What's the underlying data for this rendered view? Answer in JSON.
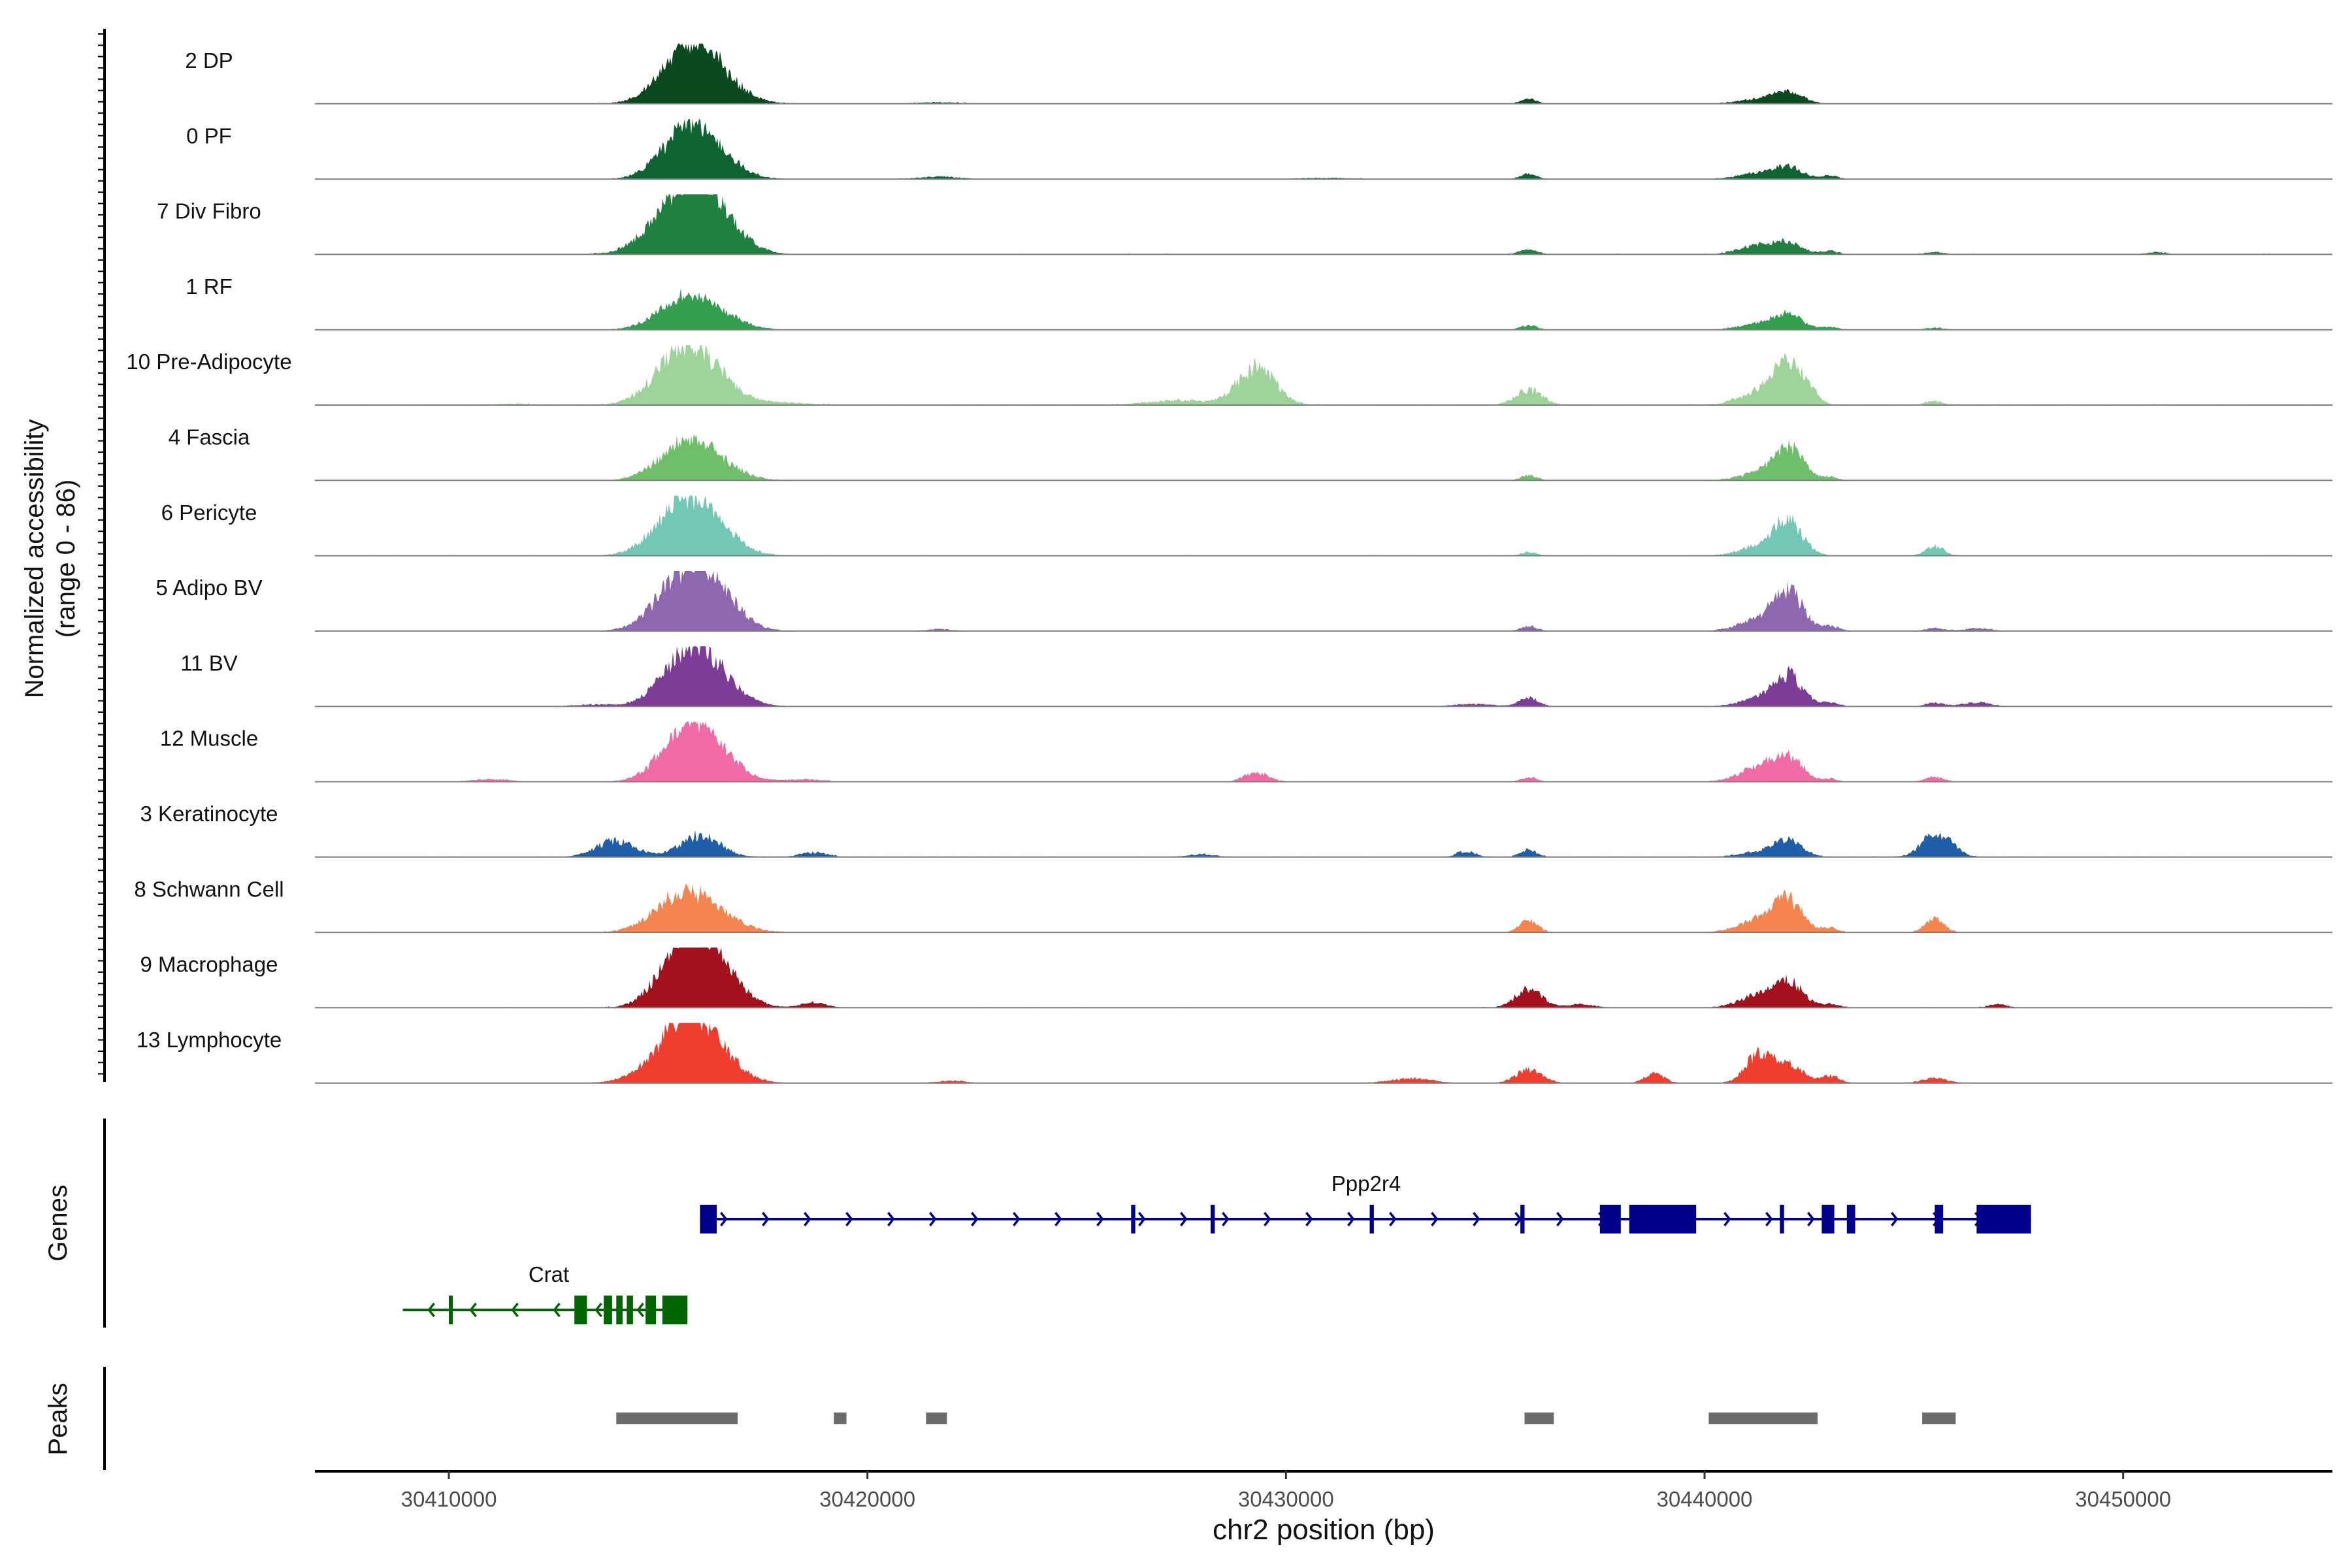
{
  "chart_data": {
    "type": "area",
    "title": "",
    "tracks": {
      "ylabel_line1": "Normalized accessibility",
      "ylabel_line2": "(range 0 - 86)",
      "ylim": [
        0,
        86
      ],
      "series": [
        {
          "name": "2 DP",
          "color": "#0b4a1f",
          "base": 0.6,
          "peaks": [
            [
              30415600,
              160,
              40
            ],
            [
              30416200,
              130,
              42
            ],
            [
              30435800,
              22,
              12
            ],
            [
              30441300,
              20,
              30
            ],
            [
              30442000,
              48,
              22
            ],
            [
              30421700,
              6,
              30
            ]
          ]
        },
        {
          "name": "0 PF",
          "color": "#0e6430",
          "base": 0.6,
          "peaks": [
            [
              30415600,
              150,
              38
            ],
            [
              30416200,
              110,
              40
            ],
            [
              30435800,
              22,
              12
            ],
            [
              30441300,
              25,
              30
            ],
            [
              30442000,
              48,
              22
            ],
            [
              30443000,
              15,
              12
            ],
            [
              30421700,
              10,
              30
            ],
            [
              30431000,
              5,
              40
            ]
          ]
        },
        {
          "name": "7 Div Fibro",
          "color": "#1f8040",
          "base": 0.9,
          "peaks": [
            [
              30415500,
              190,
              45
            ],
            [
              30416200,
              175,
              42
            ],
            [
              30435800,
              20,
              14
            ],
            [
              30441300,
              36,
              30
            ],
            [
              30442000,
              42,
              22
            ],
            [
              30443000,
              14,
              12
            ],
            [
              30445500,
              10,
              14
            ],
            [
              30450800,
              10,
              14
            ]
          ]
        },
        {
          "name": "1 RF",
          "color": "#33a04f",
          "base": 0.6,
          "peaks": [
            [
              30415500,
              95,
              38
            ],
            [
              30416200,
              85,
              40
            ],
            [
              30435800,
              20,
              12
            ],
            [
              30441300,
              25,
              30
            ],
            [
              30442000,
              60,
              22
            ],
            [
              30443000,
              12,
              12
            ],
            [
              30445500,
              8,
              14
            ]
          ]
        },
        {
          "name": "10 Pre-Adipocyte",
          "color": "#9ed499",
          "base": 1.2,
          "peaks": [
            [
              30415500,
              190,
              40
            ],
            [
              30416200,
              110,
              40
            ],
            [
              30429300,
              165,
              28
            ],
            [
              30427500,
              20,
              50
            ],
            [
              30435800,
              65,
              20
            ],
            [
              30441300,
              55,
              30
            ],
            [
              30442000,
              160,
              22
            ],
            [
              30442500,
              40,
              14
            ],
            [
              30445500,
              15,
              14
            ],
            [
              30418000,
              10,
              40
            ],
            [
              30411500,
              6,
              20
            ]
          ]
        },
        {
          "name": "4 Fascia",
          "color": "#6fbe6a",
          "base": 0.6,
          "peaks": [
            [
              30415500,
              110,
              38
            ],
            [
              30416200,
              90,
              40
            ],
            [
              30435800,
              22,
              12
            ],
            [
              30441300,
              30,
              30
            ],
            [
              30442000,
              140,
              22
            ],
            [
              30443000,
              15,
              12
            ]
          ]
        },
        {
          "name": "6 Pericyte",
          "color": "#72c8b4",
          "base": 0.6,
          "peaks": [
            [
              30415500,
              175,
              40
            ],
            [
              30416200,
              115,
              40
            ],
            [
              30435800,
              15,
              12
            ],
            [
              30441300,
              40,
              30
            ],
            [
              30442000,
              140,
              22
            ],
            [
              30445500,
              40,
              14
            ]
          ]
        },
        {
          "name": "5 Adipo BV",
          "color": "#8d68b0",
          "base": 0.6,
          "peaks": [
            [
              30415500,
              170,
              40
            ],
            [
              30416200,
              175,
              40
            ],
            [
              30435800,
              22,
              12
            ],
            [
              30441300,
              50,
              30
            ],
            [
              30442000,
              165,
              22
            ],
            [
              30443000,
              20,
              14
            ],
            [
              30445500,
              12,
              14
            ],
            [
              30446500,
              12,
              20
            ],
            [
              30421700,
              8,
              20
            ]
          ]
        },
        {
          "name": "11 BV",
          "color": "#7d3c96",
          "base": 0.5,
          "peaks": [
            [
              30415600,
              150,
              38
            ],
            [
              30416200,
              140,
              40
            ],
            [
              30435800,
              40,
              14
            ],
            [
              30441300,
              30,
              30
            ],
            [
              30442000,
              130,
              22
            ],
            [
              30443000,
              15,
              14
            ],
            [
              30446500,
              18,
              20
            ],
            [
              30445500,
              15,
              14
            ],
            [
              30413500,
              8,
              30
            ],
            [
              30434500,
              10,
              30
            ]
          ]
        },
        {
          "name": "12 Muscle",
          "color": "#f06ba3",
          "base": 0.5,
          "peaks": [
            [
              30415600,
              160,
              38
            ],
            [
              30416200,
              130,
              40
            ],
            [
              30429300,
              40,
              18
            ],
            [
              30435800,
              20,
              12
            ],
            [
              30441300,
              60,
              30
            ],
            [
              30442000,
              100,
              22
            ],
            [
              30443000,
              12,
              12
            ],
            [
              30445500,
              20,
              14
            ],
            [
              30411000,
              10,
              30
            ],
            [
              30418500,
              10,
              30
            ]
          ]
        },
        {
          "name": "3 Keratinocyte",
          "color": "#1f5ea8",
          "base": 0.9,
          "peaks": [
            [
              30414000,
              70,
              30
            ],
            [
              30416000,
              95,
              30
            ],
            [
              30435800,
              30,
              12
            ],
            [
              30434300,
              25,
              14
            ],
            [
              30442000,
              65,
              22
            ],
            [
              30445500,
              100,
              20
            ],
            [
              30441300,
              20,
              30
            ],
            [
              30418700,
              20,
              20
            ],
            [
              30428000,
              12,
              20
            ],
            [
              30446000,
              20,
              14
            ]
          ]
        },
        {
          "name": "8 Schwann Cell",
          "color": "#f6844f",
          "base": 0.8,
          "peaks": [
            [
              30415500,
              140,
              40
            ],
            [
              30416300,
              70,
              40
            ],
            [
              30435800,
              50,
              14
            ],
            [
              30441300,
              55,
              30
            ],
            [
              30442000,
              130,
              22
            ],
            [
              30443000,
              20,
              12
            ],
            [
              30445500,
              60,
              14
            ]
          ]
        },
        {
          "name": "9 Macrophage",
          "color": "#a3111c",
          "base": 0.8,
          "peaks": [
            [
              30415600,
              200,
              38
            ],
            [
              30416200,
              195,
              40
            ],
            [
              30435800,
              80,
              20
            ],
            [
              30437000,
              15,
              20
            ],
            [
              30441300,
              50,
              30
            ],
            [
              30442000,
              105,
              22
            ],
            [
              30418700,
              20,
              20
            ],
            [
              30443000,
              15,
              14
            ],
            [
              30447000,
              15,
              14
            ]
          ]
        },
        {
          "name": "13 Lymphocyte",
          "color": "#ef3e2e",
          "base": 0.5,
          "peaks": [
            [
              30415600,
              220,
              38
            ],
            [
              30416200,
              125,
              40
            ],
            [
              30435800,
              55,
              20
            ],
            [
              30438800,
              45,
              14
            ],
            [
              30441300,
              120,
              20
            ],
            [
              30442000,
              75,
              22
            ],
            [
              30443000,
              30,
              14
            ],
            [
              30414500,
              20,
              30
            ],
            [
              30433000,
              20,
              30
            ],
            [
              30422000,
              10,
              20
            ],
            [
              30445500,
              20,
              20
            ]
          ]
        }
      ]
    },
    "genes": {
      "label": "Genes",
      "items": [
        {
          "name": "Ppp2r4",
          "strand": "+",
          "color": "#00008b",
          "start": 30416000,
          "end": 30447800,
          "exons": [
            [
              30416000,
              30416400
            ],
            [
              30426300,
              30426400
            ],
            [
              30428200,
              30428300
            ],
            [
              30432000,
              30432100
            ],
            [
              30435600,
              30435700
            ],
            [
              30437500,
              30438000
            ],
            [
              30438200,
              30439800
            ],
            [
              30441800,
              30441900
            ],
            [
              30442800,
              30443100
            ],
            [
              30443400,
              30443600
            ],
            [
              30445500,
              30445700
            ],
            [
              30446500,
              30447800
            ]
          ]
        },
        {
          "name": "Crat",
          "strand": "-",
          "color": "#006400",
          "start": 30408900,
          "end": 30415700,
          "exons": [
            [
              30410000,
              30410050
            ],
            [
              30413000,
              30413300
            ],
            [
              30413700,
              30413900
            ],
            [
              30414000,
              30414150
            ],
            [
              30414250,
              30414400
            ],
            [
              30414700,
              30414950
            ],
            [
              30415100,
              30415700
            ]
          ]
        }
      ]
    },
    "peaks": {
      "label": "Peaks",
      "color": "#6b6b6b",
      "ranges": [
        [
          30414000,
          30416900
        ],
        [
          30419200,
          30419500
        ],
        [
          30421400,
          30421900
        ],
        [
          30435700,
          30436400
        ],
        [
          30440100,
          30442700
        ],
        [
          30445200,
          30446000
        ]
      ]
    },
    "xaxis": {
      "xlabel": "chr2 position (bp)",
      "xlim": [
        30406800,
        30455000
      ],
      "ticks": [
        30410000,
        30420000,
        30430000,
        30440000,
        30450000
      ],
      "tick_labels": [
        "30410000",
        "30420000",
        "30430000",
        "30440000",
        "30450000"
      ]
    }
  }
}
